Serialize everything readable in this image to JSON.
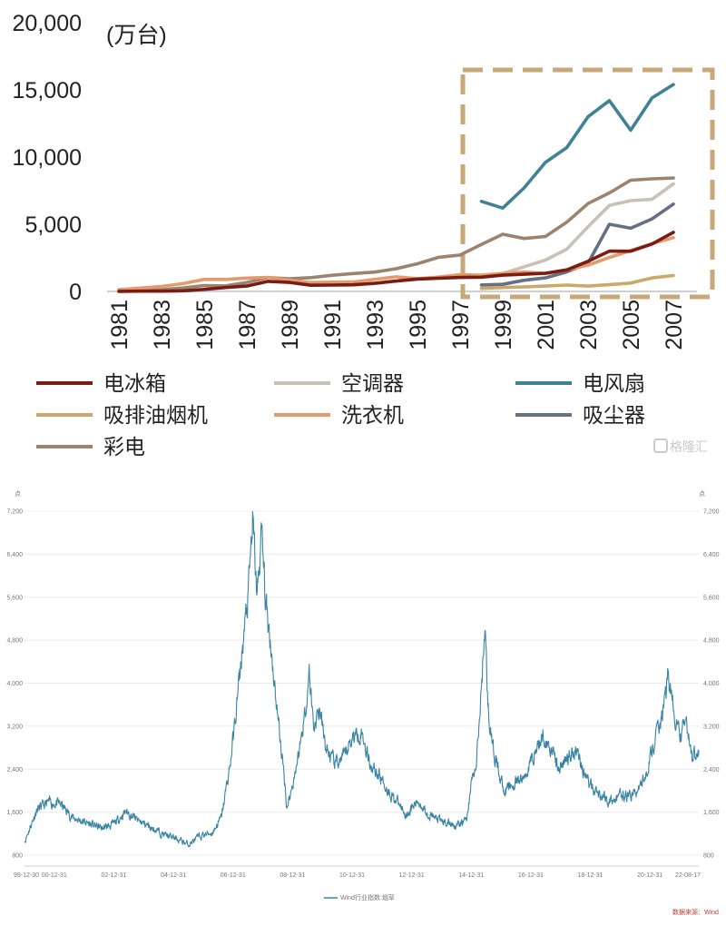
{
  "chart_data": [
    {
      "type": "line",
      "unit_label": "(万台)",
      "ylim": [
        0,
        20000
      ],
      "y_ticks": [
        "0",
        "5,000",
        "10,000",
        "15,000",
        "20,000"
      ],
      "x_ticks": [
        "1981",
        "1983",
        "1985",
        "1987",
        "1989",
        "1991",
        "1993",
        "1995",
        "1997",
        "1999",
        "2001",
        "2003",
        "2005",
        "2007"
      ],
      "x": [
        1981,
        1982,
        1983,
        1984,
        1985,
        1986,
        1987,
        1988,
        1989,
        1990,
        1991,
        1992,
        1993,
        1994,
        1995,
        1996,
        1997,
        1998,
        1999,
        2000,
        2001,
        2002,
        2003,
        2004,
        2005,
        2006,
        2007
      ],
      "series": [
        {
          "name": "电冰箱",
          "color": "#7b1c14",
          "values": [
            10,
            20,
            20,
            50,
            150,
            290,
            400,
            750,
            670,
            460,
            470,
            490,
            600,
            770,
            920,
            980,
            1040,
            1060,
            1210,
            1280,
            1350,
            1600,
            2240,
            3000,
            2990,
            3530,
            4400
          ]
        },
        {
          "name": "空调器",
          "color": "#c8c2b6",
          "values": [
            null,
            null,
            null,
            null,
            null,
            null,
            null,
            null,
            null,
            null,
            null,
            null,
            null,
            null,
            null,
            null,
            null,
            1200,
            1340,
            1830,
            2330,
            3140,
            4820,
            6400,
            6760,
            6850,
            8010
          ]
        },
        {
          "name": "电风扇",
          "color": "#3f8294",
          "values": [
            null,
            null,
            null,
            null,
            null,
            null,
            null,
            null,
            null,
            null,
            null,
            null,
            null,
            null,
            null,
            null,
            null,
            6700,
            6200,
            7700,
            9600,
            10700,
            13000,
            14200,
            12000,
            14400,
            15400
          ]
        },
        {
          "name": "吸排油烟机",
          "color": "#c9aa6a",
          "values": [
            null,
            null,
            null,
            null,
            null,
            null,
            null,
            null,
            null,
            null,
            null,
            null,
            null,
            null,
            null,
            null,
            null,
            220,
            290,
            330,
            400,
            470,
            400,
            500,
            620,
            1010,
            1180
          ]
        },
        {
          "name": "洗衣机",
          "color": "#e69a6b",
          "values": [
            130,
            250,
            370,
            580,
            890,
            890,
            990,
            1050,
            830,
            660,
            690,
            700,
            900,
            1090,
            950,
            1070,
            1250,
            1200,
            1340,
            1440,
            1340,
            1600,
            1960,
            2530,
            3040,
            3560,
            4000
          ]
        },
        {
          "name": "吸尘器",
          "color": "#666f85",
          "values": [
            null,
            null,
            null,
            null,
            null,
            null,
            null,
            null,
            null,
            null,
            null,
            null,
            null,
            null,
            null,
            null,
            null,
            480,
            530,
            830,
            1010,
            1450,
            2100,
            5000,
            4700,
            5400,
            6500
          ]
        },
        {
          "name": "彩电",
          "color": "#9a8470",
          "values": [
            10,
            60,
            130,
            260,
            440,
            410,
            670,
            1030,
            940,
            1030,
            1200,
            1330,
            1440,
            1690,
            2060,
            2540,
            2710,
            3490,
            4260,
            3940,
            4090,
            5150,
            6540,
            7330,
            8280,
            8380,
            8440
          ]
        }
      ]
    },
    {
      "type": "line",
      "y_ticks": [
        "800",
        "1,600",
        "2,400",
        "3,200",
        "4,000",
        "4,800",
        "5,600",
        "6,400",
        "7,200"
      ],
      "ylim": [
        800,
        7200
      ],
      "x_ticks": [
        "99-12-30",
        "00-12-31",
        "02-12-31",
        "04-12-31",
        "06-12-31",
        "08-12-31",
        "10-12-31",
        "12-12-31",
        "14-12-31",
        "16-12-31",
        "18-12-31",
        "20-12-31",
        "22-08-17"
      ],
      "x_tick_years": [
        1999.99,
        2000.99,
        2002.99,
        2004.99,
        2006.99,
        2008.99,
        2010.99,
        2012.99,
        2014.99,
        2016.99,
        2018.99,
        2020.99,
        2022.63
      ],
      "axis_unit": "点",
      "legend": "Wind行业指数:烟草",
      "source": "数据来源：Wind",
      "anchors": [
        [
          1999.99,
          1050
        ],
        [
          2000.4,
          1640
        ],
        [
          2000.8,
          1780
        ],
        [
          2001.2,
          1750
        ],
        [
          2001.6,
          1500
        ],
        [
          2002.0,
          1420
        ],
        [
          2002.6,
          1300
        ],
        [
          2003.0,
          1380
        ],
        [
          2003.4,
          1620
        ],
        [
          2003.8,
          1440
        ],
        [
          2004.2,
          1330
        ],
        [
          2004.7,
          1180
        ],
        [
          2005.2,
          1080
        ],
        [
          2005.5,
          1000
        ],
        [
          2005.9,
          1160
        ],
        [
          2006.3,
          1220
        ],
        [
          2006.6,
          1500
        ],
        [
          2006.9,
          2500
        ],
        [
          2007.1,
          3500
        ],
        [
          2007.3,
          4600
        ],
        [
          2007.5,
          5600
        ],
        [
          2007.65,
          7000
        ],
        [
          2007.8,
          5600
        ],
        [
          2007.95,
          6800
        ],
        [
          2008.1,
          5400
        ],
        [
          2008.25,
          4800
        ],
        [
          2008.4,
          3900
        ],
        [
          2008.55,
          3100
        ],
        [
          2008.7,
          2300
        ],
        [
          2008.8,
          1700
        ],
        [
          2008.95,
          2000
        ],
        [
          2009.2,
          2700
        ],
        [
          2009.4,
          3400
        ],
        [
          2009.55,
          4200
        ],
        [
          2009.7,
          3200
        ],
        [
          2009.9,
          3500
        ],
        [
          2010.1,
          2800
        ],
        [
          2010.4,
          2500
        ],
        [
          2010.7,
          2600
        ],
        [
          2011.0,
          3000
        ],
        [
          2011.3,
          3100
        ],
        [
          2011.6,
          2500
        ],
        [
          2011.9,
          2300
        ],
        [
          2012.2,
          2000
        ],
        [
          2012.5,
          1800
        ],
        [
          2012.8,
          1550
        ],
        [
          2013.2,
          1800
        ],
        [
          2013.6,
          1550
        ],
        [
          2013.9,
          1450
        ],
        [
          2014.2,
          1400
        ],
        [
          2014.6,
          1350
        ],
        [
          2014.85,
          1500
        ],
        [
          2015.0,
          2200
        ],
        [
          2015.15,
          2400
        ],
        [
          2015.3,
          3600
        ],
        [
          2015.45,
          5100
        ],
        [
          2015.55,
          3600
        ],
        [
          2015.7,
          2800
        ],
        [
          2015.9,
          2400
        ],
        [
          2016.1,
          2000
        ],
        [
          2016.4,
          2100
        ],
        [
          2016.8,
          2250
        ],
        [
          2017.1,
          2700
        ],
        [
          2017.4,
          3000
        ],
        [
          2017.7,
          2800
        ],
        [
          2017.9,
          2400
        ],
        [
          2018.2,
          2600
        ],
        [
          2018.5,
          2800
        ],
        [
          2018.8,
          2300
        ],
        [
          2019.1,
          2000
        ],
        [
          2019.4,
          1900
        ],
        [
          2019.7,
          1800
        ],
        [
          2020.0,
          1900
        ],
        [
          2020.3,
          1900
        ],
        [
          2020.6,
          2000
        ],
        [
          2020.9,
          2400
        ],
        [
          2021.2,
          3000
        ],
        [
          2021.45,
          3500
        ],
        [
          2021.6,
          4200
        ],
        [
          2021.8,
          3400
        ],
        [
          2022.0,
          3000
        ],
        [
          2022.2,
          3300
        ],
        [
          2022.4,
          2600
        ],
        [
          2022.55,
          2800
        ],
        [
          2022.63,
          2750
        ]
      ]
    }
  ],
  "watermark": "格隆汇"
}
